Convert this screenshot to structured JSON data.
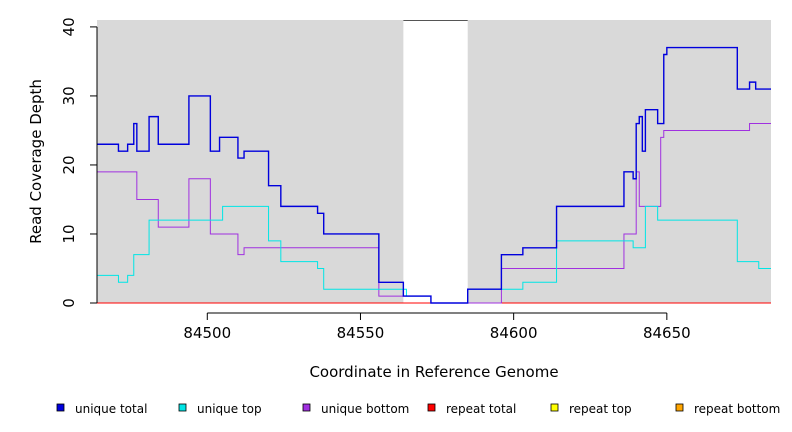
{
  "chart_data": {
    "type": "line",
    "step": true,
    "title": "",
    "xlabel": "Coordinate in Reference Genome",
    "ylabel": "Read Coverage Depth",
    "xlim": [
      84464,
      84684
    ],
    "ylim": [
      0,
      41
    ],
    "x_ticks": [
      84500,
      84550,
      84600,
      84650
    ],
    "y_ticks": [
      0,
      10,
      20,
      30,
      40
    ],
    "plot_background": "#d9d9d9",
    "gap_region": {
      "x0": 84564,
      "x1": 84585,
      "fill": "#ffffff"
    },
    "legend_position": "bottom",
    "series": [
      {
        "name": "unique total",
        "color": "#0000dd",
        "points": [
          [
            84464,
            23
          ],
          [
            84471,
            22
          ],
          [
            84474,
            23
          ],
          [
            84476,
            26
          ],
          [
            84477,
            22
          ],
          [
            84481,
            27
          ],
          [
            84484,
            23
          ],
          [
            84494,
            30
          ],
          [
            84501,
            22
          ],
          [
            84504,
            24
          ],
          [
            84510,
            21
          ],
          [
            84512,
            22
          ],
          [
            84520,
            17
          ],
          [
            84524,
            14
          ],
          [
            84536,
            13
          ],
          [
            84538,
            10
          ],
          [
            84556,
            3
          ],
          [
            84564,
            1
          ],
          [
            84573,
            0
          ],
          [
            84585,
            2
          ],
          [
            84596,
            7
          ],
          [
            84603,
            8
          ],
          [
            84614,
            14
          ],
          [
            84636,
            19
          ],
          [
            84639,
            18
          ],
          [
            84640,
            26
          ],
          [
            84641,
            27
          ],
          [
            84642,
            22
          ],
          [
            84643,
            28
          ],
          [
            84647,
            26
          ],
          [
            84649,
            36
          ],
          [
            84650,
            37
          ],
          [
            84673,
            31
          ],
          [
            84677,
            32
          ],
          [
            84679,
            31
          ],
          [
            84684,
            31
          ]
        ]
      },
      {
        "name": "unique top",
        "color": "#00e5e5",
        "points": [
          [
            84464,
            4
          ],
          [
            84471,
            3
          ],
          [
            84474,
            4
          ],
          [
            84476,
            7
          ],
          [
            84481,
            12
          ],
          [
            84494,
            12
          ],
          [
            84505,
            14
          ],
          [
            84520,
            9
          ],
          [
            84524,
            6
          ],
          [
            84536,
            5
          ],
          [
            84538,
            2
          ],
          [
            84556,
            2
          ],
          [
            84565,
            1
          ],
          [
            84573,
            0
          ],
          [
            84585,
            2
          ],
          [
            84596,
            2
          ],
          [
            84603,
            3
          ],
          [
            84614,
            9
          ],
          [
            84636,
            9
          ],
          [
            84639,
            8
          ],
          [
            84643,
            14
          ],
          [
            84647,
            12
          ],
          [
            84673,
            6
          ],
          [
            84680,
            5
          ],
          [
            84684,
            5
          ]
        ]
      },
      {
        "name": "unique bottom",
        "color": "#a030e0",
        "points": [
          [
            84464,
            19
          ],
          [
            84474,
            19
          ],
          [
            84477,
            15
          ],
          [
            84481,
            15
          ],
          [
            84484,
            11
          ],
          [
            84494,
            18
          ],
          [
            84501,
            10
          ],
          [
            84510,
            7
          ],
          [
            84512,
            8
          ],
          [
            84538,
            8
          ],
          [
            84556,
            1
          ],
          [
            84564,
            1
          ],
          [
            84573,
            0
          ],
          [
            84596,
            5
          ],
          [
            84636,
            5
          ],
          [
            84636,
            10
          ],
          [
            84640,
            19
          ],
          [
            84641,
            14
          ],
          [
            84648,
            24
          ],
          [
            84649,
            25
          ],
          [
            84677,
            26
          ],
          [
            84684,
            26
          ]
        ]
      },
      {
        "name": "repeat total",
        "color": "#ff0000",
        "points": [
          [
            84464,
            0
          ],
          [
            84684,
            0
          ]
        ]
      },
      {
        "name": "repeat top",
        "color": "#ffff00",
        "points": [
          [
            84464,
            0
          ],
          [
            84684,
            0
          ]
        ]
      },
      {
        "name": "repeat bottom",
        "color": "#ffa500",
        "points": [
          [
            84464,
            0
          ],
          [
            84684,
            0
          ]
        ]
      }
    ]
  }
}
